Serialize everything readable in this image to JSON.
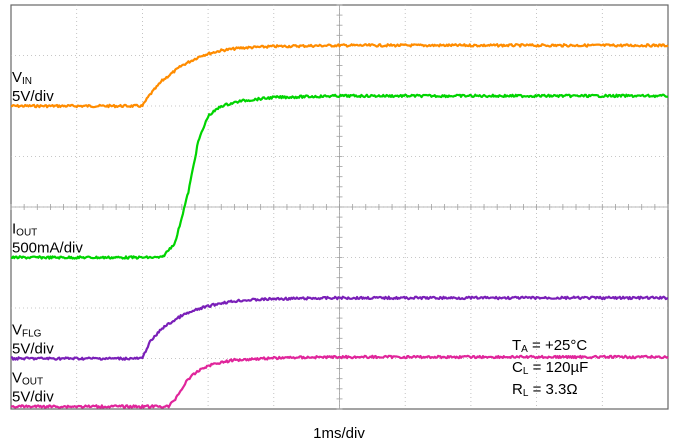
{
  "chart_data": {
    "type": "line",
    "xlabel": "1ms/div",
    "grid": true,
    "divisions": {
      "x": 10,
      "y": 8
    },
    "x_units": "ms",
    "x_range": [
      0,
      10
    ],
    "series": [
      {
        "name_main": "V",
        "name_sub": "IN",
        "scale": "5V/div",
        "color": "#ff8c00",
        "x": [
          0,
          2.0,
          2.1,
          2.3,
          2.6,
          2.9,
          3.2,
          3.5,
          4.0,
          5.0,
          10.0
        ],
        "y": [
          6.0,
          6.0,
          6.2,
          6.5,
          6.8,
          7.0,
          7.1,
          7.15,
          7.18,
          7.2,
          7.2
        ]
      },
      {
        "name_main": "I",
        "name_sub": "OUT",
        "scale": "500mA/div",
        "color": "#00d400",
        "x": [
          0,
          2.3,
          2.5,
          2.7,
          2.85,
          3.0,
          3.2,
          3.5,
          4.0,
          5.0,
          10.0
        ],
        "y": [
          3.0,
          3.0,
          3.3,
          4.3,
          5.3,
          5.8,
          6.0,
          6.1,
          6.17,
          6.2,
          6.2
        ]
      },
      {
        "name_main": "V",
        "name_sub": "FLG",
        "scale": "5V/div",
        "color": "#7a1fb8",
        "x": [
          0,
          2.0,
          2.1,
          2.3,
          2.6,
          2.9,
          3.2,
          3.5,
          4.0,
          5.0,
          10.0
        ],
        "y": [
          1.0,
          1.0,
          1.3,
          1.6,
          1.85,
          2.0,
          2.1,
          2.15,
          2.18,
          2.2,
          2.2
        ]
      },
      {
        "name_main": "V",
        "name_sub": "OUT",
        "scale": "5V/div",
        "color": "#e0259b",
        "x": [
          0,
          2.4,
          2.5,
          2.7,
          2.9,
          3.1,
          3.4,
          3.8,
          4.3,
          5.0,
          10.0
        ],
        "y": [
          0.05,
          0.05,
          0.2,
          0.6,
          0.8,
          0.9,
          0.97,
          1.0,
          1.02,
          1.03,
          1.03
        ]
      }
    ],
    "annotations": [
      {
        "main": "T",
        "sub": "A",
        "rest": " = +25°C"
      },
      {
        "main": "C",
        "sub": "L",
        "rest": " = 120µF"
      },
      {
        "main": "R",
        "sub": "L",
        "rest": " = 3.3Ω"
      }
    ]
  }
}
